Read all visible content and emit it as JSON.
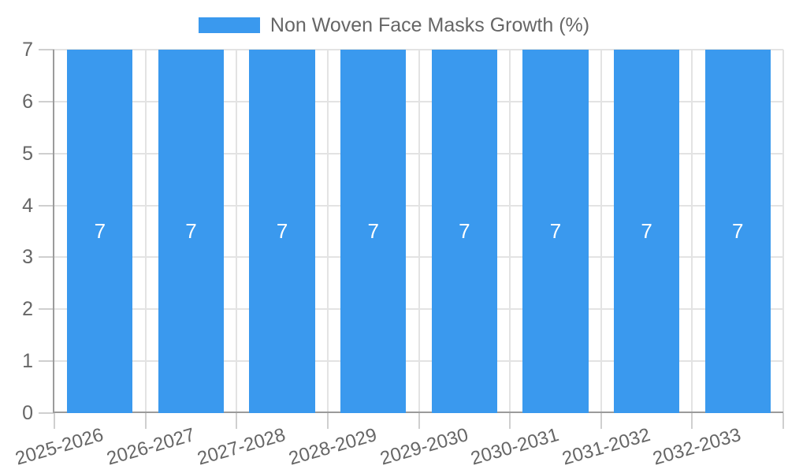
{
  "legend": {
    "label": "Non Woven Face Masks Growth (%)"
  },
  "colors": {
    "bar": "#3a99ee",
    "grid": "#e3e3e3",
    "tick": "#cfcfcf",
    "axis": "#9b9b9b",
    "text": "#666666",
    "bar_label": "#ffffff"
  },
  "chart_data": {
    "type": "bar",
    "title": "",
    "xlabel": "",
    "ylabel": "",
    "categories": [
      "2025-2026",
      "2026-2027",
      "2027-2028",
      "2028-2029",
      "2029-2030",
      "2030-2031",
      "2031-2032",
      "2032-2033"
    ],
    "series": [
      {
        "name": "Non Woven Face Masks Growth (%)",
        "values": [
          7,
          7,
          7,
          7,
          7,
          7,
          7,
          7
        ]
      }
    ],
    "values": [
      7,
      7,
      7,
      7,
      7,
      7,
      7,
      7
    ],
    "yticks": [
      0,
      1,
      2,
      3,
      4,
      5,
      6,
      7
    ],
    "ylim": [
      0,
      7
    ],
    "grid": true,
    "legend_position": "top",
    "bar_labels": true
  }
}
